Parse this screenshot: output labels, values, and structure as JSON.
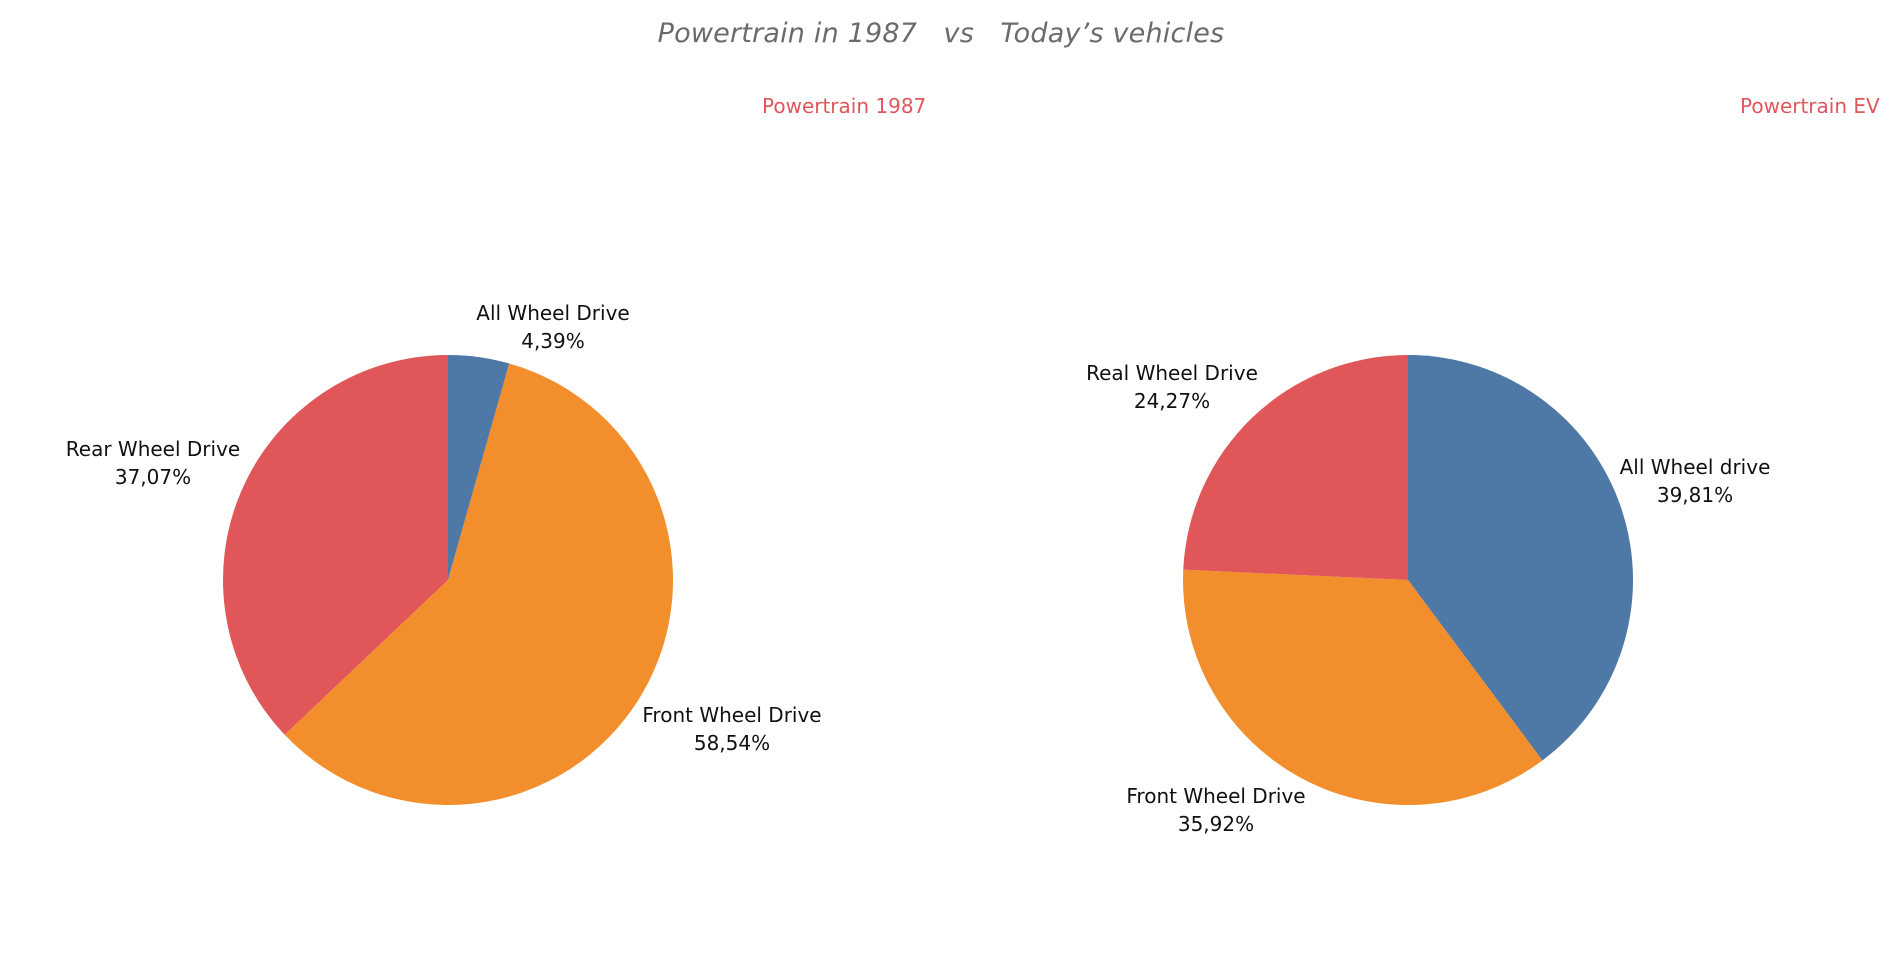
{
  "title": "Powertrain in 1987   vs   Today’s vehicles",
  "chart_data": [
    {
      "type": "pie",
      "title": "Powertrain 1987",
      "slices": [
        {
          "name": "All Wheel Drive",
          "value": 4.39,
          "label": "4,39%",
          "color": "#4e79a7"
        },
        {
          "name": "Front Wheel Drive",
          "value": 58.54,
          "label": "58,54%",
          "color": "#f28e2b"
        },
        {
          "name": "Rear Wheel Drive",
          "value": 37.07,
          "label": "37,07%",
          "color": "#e15759"
        }
      ]
    },
    {
      "type": "pie",
      "title": "Powertrain EV",
      "slices": [
        {
          "name": "All Wheel drive",
          "value": 39.81,
          "label": "39,81%",
          "color": "#4e79a7"
        },
        {
          "name": "Front Wheel Drive",
          "value": 35.92,
          "label": "35,92%",
          "color": "#f28e2b"
        },
        {
          "name": "Real Wheel Drive",
          "value": 24.27,
          "label": "24,27%",
          "color": "#e15759"
        }
      ]
    }
  ]
}
